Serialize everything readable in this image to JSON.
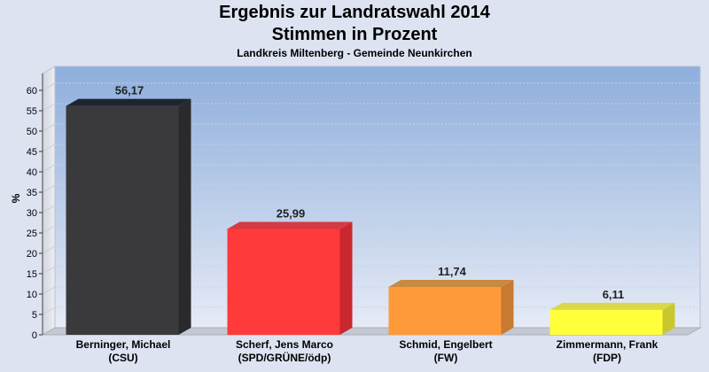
{
  "chart_data": {
    "type": "bar",
    "title": "Ergebnis zur Landratswahl 2014",
    "subtitle": "Stimmen in Prozent",
    "caption": "Landkreis Miltenberg - Gemeinde Neunkirchen",
    "ylabel": "%",
    "ylim": [
      0,
      60
    ],
    "yticks": [
      0,
      5,
      10,
      15,
      20,
      25,
      30,
      35,
      40,
      45,
      50,
      55,
      60
    ],
    "grid": true,
    "categories": [
      [
        "Berninger, Michael",
        "(CSU)"
      ],
      [
        "Scherf, Jens Marco",
        "(SPD/GRÜNE/ödp)"
      ],
      [
        "Schmid, Engelbert",
        "(FW)"
      ],
      [
        "Zimmermann, Frank",
        "(FDP)"
      ]
    ],
    "values": [
      56.17,
      25.99,
      11.74,
      6.11
    ],
    "value_labels": [
      "56,17",
      "25,99",
      "11,74",
      "6,11"
    ],
    "colors": [
      "#3a3a3c",
      "#ff3a3a",
      "#ff9a3a",
      "#ffff3a"
    ],
    "side_colors": [
      "#2a2a2c",
      "#c8282e",
      "#c77a30",
      "#c8c82e"
    ],
    "top_colors": [
      "#1e2430",
      "#d63a44",
      "#c78a40",
      "#d8d84a"
    ]
  }
}
